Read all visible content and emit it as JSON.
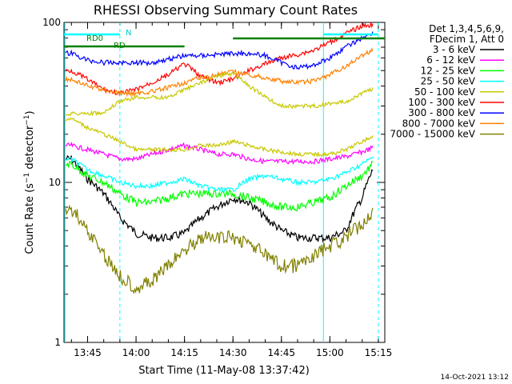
{
  "chart_data": {
    "type": "line",
    "title": "RHESSI Observing Summary Count Rates",
    "xlabel": "Start Time (11-May-08 13:37:42)",
    "ylabel": "Count Rate (s⁻¹ detector⁻¹)",
    "ylabel_main": "Count Rate (s",
    "ylabel_sup1": "−1",
    "ylabel_mid": " detector",
    "ylabel_sup2": "−1",
    "ylabel_end": ")",
    "yscale": "log",
    "ylim": [
      1,
      100
    ],
    "xlim": [
      "13:37:42",
      "15:17"
    ],
    "x_ticks": [
      "13:45",
      "14:00",
      "14:15",
      "14:30",
      "14:45",
      "15:00",
      "15:15"
    ],
    "y_ticks": [
      "1",
      "10",
      "100"
    ],
    "legend_position": "right",
    "legend_header": [
      "Det 1,3,4,5,6,9,",
      "FDecim 1, Att 0"
    ],
    "footer_date": "14-Oct-2021 13:12",
    "annotations": {
      "rd0": "RD0",
      "n": "N",
      "rd": "RD"
    },
    "state_lines": [
      {
        "label": "N",
        "color": "#00ffff",
        "from": "13:37:42",
        "to": "13:55"
      },
      {
        "label": "N",
        "color": "#00ffff",
        "from": "14:58",
        "to": "15:15"
      },
      {
        "label": "RD0",
        "color": "#008000",
        "from": "13:37:42",
        "to": "14:15"
      },
      {
        "label": "RD0",
        "color": "#008000",
        "from": "14:30",
        "to": "15:17"
      }
    ],
    "vertical_markers": [
      {
        "time": "13:38",
        "color": "#00ffff",
        "style": "solid"
      },
      {
        "time": "13:55",
        "color": "#00ffff",
        "style": "dashed"
      },
      {
        "time": "14:58",
        "color": "#00ffff",
        "style": "solid"
      },
      {
        "time": "15:15",
        "color": "#00ffff",
        "style": "dashed"
      }
    ],
    "times": [
      "13:40",
      "13:45",
      "13:50",
      "13:55",
      "14:00",
      "14:05",
      "14:10",
      "14:15",
      "14:20",
      "14:25",
      "14:30",
      "14:35",
      "14:40",
      "14:45",
      "14:50",
      "14:55",
      "15:00",
      "15:05",
      "15:10",
      "15:15"
    ],
    "series": [
      {
        "name": "3 - 6 keV",
        "color": "#000000",
        "values": [
          null,
          null,
          null,
          null,
          null,
          null,
          null,
          null,
          null,
          null,
          null,
          null,
          null,
          null,
          null,
          null,
          null,
          null,
          null,
          null
        ]
      },
      {
        "name": "6 - 12 keV",
        "color": "#ff00ff",
        "values": [
          17,
          16,
          15,
          14,
          14,
          15,
          16,
          17,
          16,
          15,
          15,
          14,
          13.5,
          13.5,
          13.5,
          13.5,
          14,
          14.5,
          15.5,
          17
        ]
      },
      {
        "name": "12 - 25 keV",
        "color": "#00ff00",
        "values": [
          13,
          11,
          10,
          8.5,
          7.5,
          7.5,
          8,
          8.5,
          8.5,
          8.5,
          8.5,
          8,
          7.5,
          7,
          7,
          7.5,
          8,
          9.5,
          11,
          14
        ]
      },
      {
        "name": "25 - 50 keV",
        "color": "#00ffff",
        "values": [
          14,
          12,
          11,
          10,
          9.5,
          9.5,
          10,
          10.5,
          9.5,
          9,
          9,
          10.5,
          11,
          10.5,
          10,
          10,
          10.5,
          11.5,
          13,
          15
        ]
      },
      {
        "name": "50 - 100 keV",
        "color": "#c8c800",
        "values": [
          25,
          22,
          20,
          18,
          16,
          16,
          16,
          16,
          17,
          17,
          18,
          17,
          16,
          15.5,
          15,
          15,
          15,
          16,
          18,
          20
        ]
      },
      {
        "name": "100 - 300 keV",
        "color": "#ff0000",
        "values": [
          50,
          44,
          38,
          36,
          38,
          42,
          47,
          55,
          46,
          42,
          44,
          50,
          55,
          60,
          63,
          67,
          75,
          85,
          95,
          98
        ]
      },
      {
        "name": "300 - 800 keV",
        "color": "#0000ff",
        "values": [
          64,
          58,
          56,
          56,
          56,
          56,
          59,
          62,
          62,
          63,
          64,
          64,
          62,
          56,
          52,
          54,
          60,
          70,
          80,
          90
        ]
      },
      {
        "name": "800 - 7000 keV",
        "color": "#ff8000",
        "values": [
          44,
          40,
          38,
          36,
          36,
          37,
          39,
          42,
          45,
          47,
          49,
          47,
          45,
          43,
          42,
          43,
          47,
          53,
          62,
          70
        ]
      },
      {
        "name": "7000 - 15000 keV",
        "color": "#808000",
        "values": [
          6.8,
          5,
          3.5,
          2.6,
          2.2,
          2.4,
          3,
          3.8,
          4.5,
          4.5,
          4.5,
          4.2,
          3.5,
          3,
          3,
          3.5,
          4,
          4.5,
          5.5,
          7
        ]
      }
    ],
    "black_values": [
      14,
      10.5,
      8.5,
      6,
      4.8,
      4.5,
      4.5,
      4.8,
      6,
      7,
      8,
      7.5,
      6,
      5,
      4.5,
      4.5,
      4.5,
      5,
      8,
      14
    ],
    "yellow_values": [
      27,
      27,
      27,
      32,
      34,
      34,
      34,
      38,
      42,
      46,
      48,
      40,
      34,
      30,
      30,
      30,
      31,
      32,
      36,
      40
    ]
  }
}
